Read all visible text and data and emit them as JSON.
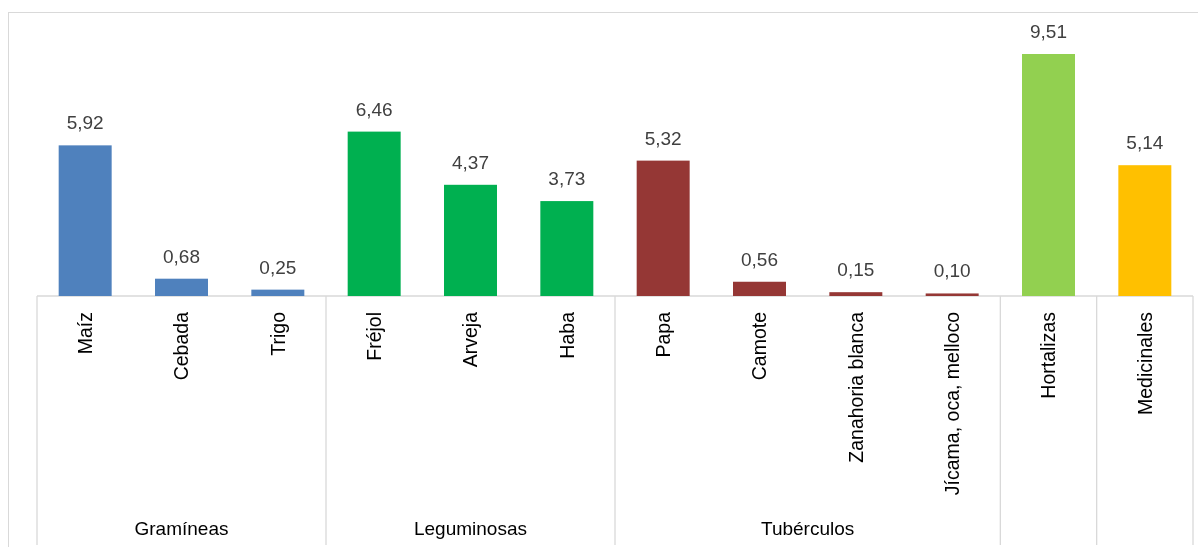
{
  "chart_data": {
    "type": "bar",
    "categories": [
      "Maíz",
      "Cebada",
      "Trigo",
      "Fréjol",
      "Arveja",
      "Haba",
      "Papa",
      "Camote",
      "Zanahoria blanca",
      "Jícama, oca, melloco",
      "Hortalizas",
      "Medicinales"
    ],
    "values": [
      5.92,
      0.68,
      0.25,
      6.46,
      4.37,
      3.73,
      5.32,
      0.56,
      0.15,
      0.1,
      9.51,
      5.14
    ],
    "colors": [
      "#4f81bd",
      "#4f81bd",
      "#4f81bd",
      "#00b050",
      "#00b050",
      "#00b050",
      "#953735",
      "#953735",
      "#953735",
      "#953735",
      "#92d050",
      "#ffc000"
    ],
    "value_labels": [
      "5,92",
      "0,68",
      "0,25",
      "6,46",
      "4,37",
      "3,73",
      "5,32",
      "0,56",
      "0,15",
      "0,10",
      "9,51",
      "5,14"
    ],
    "annotations": [
      "Gramíneas",
      "Leguminosas",
      "Tubérculos"
    ],
    "tick_labels": "x"
  }
}
